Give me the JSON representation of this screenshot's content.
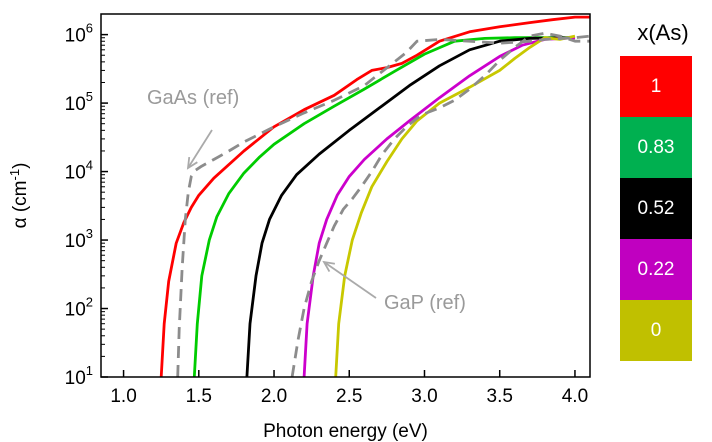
{
  "chart_data": {
    "type": "line",
    "title": "",
    "xlabel": "Photon energy (eV)",
    "ylabel": "α (cm⁻¹)",
    "ylabel_parts": {
      "symbol": "α (cm",
      "sup": "-1",
      "close": ")"
    },
    "xlim": [
      0.85,
      4.1
    ],
    "ylim": [
      10,
      2000000
    ],
    "yscale": "log",
    "x_ticks": [
      "1.0",
      "1.5",
      "2.0",
      "2.5",
      "3.0",
      "3.5",
      "4.0"
    ],
    "x_tick_values": [
      1.0,
      1.5,
      2.0,
      2.5,
      3.0,
      3.5,
      4.0
    ],
    "y_ticks": [
      {
        "value": 10,
        "base": "10",
        "exp": "1"
      },
      {
        "value": 100,
        "base": "10",
        "exp": "2"
      },
      {
        "value": 1000,
        "base": "10",
        "exp": "3"
      },
      {
        "value": 10000,
        "base": "10",
        "exp": "4"
      },
      {
        "value": 100000,
        "base": "10",
        "exp": "5"
      },
      {
        "value": 1000000,
        "base": "10",
        "exp": "6"
      }
    ],
    "grid": false,
    "legend_title": "x(As)",
    "legend_placement": "right",
    "series": [
      {
        "name": "1",
        "color": "#ff0000",
        "style": "solid",
        "x": [
          1.25,
          1.27,
          1.3,
          1.35,
          1.4,
          1.45,
          1.5,
          1.6,
          1.8,
          2.0,
          2.2,
          2.4,
          2.55,
          2.65,
          2.75,
          2.85,
          2.95,
          3.1,
          3.3,
          3.5,
          3.7,
          3.85,
          4.0,
          4.1
        ],
        "y": [
          10,
          60,
          250,
          900,
          1800,
          3000,
          4500,
          8000,
          20000,
          45000,
          80000,
          130000,
          220000,
          300000,
          330000,
          380000,
          500000,
          800000,
          1100000,
          1300000,
          1500000,
          1650000,
          1800000,
          1800000
        ]
      },
      {
        "name": "0.83",
        "color": "#00cc00",
        "style": "solid",
        "x": [
          1.47,
          1.49,
          1.52,
          1.57,
          1.62,
          1.7,
          1.8,
          1.9,
          2.0,
          2.2,
          2.4,
          2.6,
          2.8,
          3.0,
          3.2,
          3.4,
          3.6,
          3.8,
          4.0
        ],
        "y": [
          10,
          60,
          300,
          1000,
          2200,
          4800,
          9500,
          16000,
          25000,
          50000,
          90000,
          160000,
          290000,
          520000,
          800000,
          880000,
          900000,
          900000,
          900000
        ]
      },
      {
        "name": "0.52",
        "color": "#000000",
        "style": "solid",
        "x": [
          1.82,
          1.84,
          1.88,
          1.92,
          1.97,
          2.05,
          2.15,
          2.3,
          2.5,
          2.7,
          2.9,
          3.1,
          3.3,
          3.5,
          3.7,
          4.0
        ],
        "y": [
          10,
          60,
          300,
          900,
          2000,
          4500,
          9000,
          18000,
          40000,
          85000,
          180000,
          350000,
          600000,
          800000,
          880000,
          900000
        ]
      },
      {
        "name": "0.22",
        "color": "#cc00cc",
        "style": "solid",
        "x": [
          2.2,
          2.22,
          2.26,
          2.3,
          2.35,
          2.42,
          2.5,
          2.6,
          2.75,
          2.9,
          3.1,
          3.3,
          3.5,
          3.65,
          3.8,
          4.0
        ],
        "y": [
          10,
          60,
          300,
          900,
          2000,
          4500,
          8500,
          15000,
          30000,
          55000,
          120000,
          250000,
          480000,
          700000,
          850000,
          900000
        ]
      },
      {
        "name": "0",
        "color": "#c8c800",
        "style": "solid",
        "x": [
          2.41,
          2.43,
          2.47,
          2.52,
          2.58,
          2.65,
          2.75,
          2.85,
          2.95,
          3.1,
          3.3,
          3.5,
          3.6,
          3.7,
          3.8,
          3.9,
          4.0
        ],
        "y": [
          10,
          60,
          300,
          1000,
          2500,
          6000,
          14000,
          30000,
          55000,
          100000,
          170000,
          300000,
          450000,
          650000,
          900000,
          850000,
          950000
        ]
      },
      {
        "name": "GaAs (ref)",
        "color": "#8c8c8c",
        "style": "dashed",
        "x": [
          1.36,
          1.37,
          1.39,
          1.41,
          1.43,
          1.45,
          1.48,
          1.52,
          1.6,
          1.7,
          1.8,
          2.0,
          2.2,
          2.4,
          2.6,
          2.7,
          2.8,
          2.88,
          2.95,
          3.1,
          3.3,
          3.5,
          3.7,
          3.8,
          4.0,
          4.1
        ],
        "y": [
          10,
          50,
          400,
          2000,
          5000,
          8500,
          10500,
          12000,
          15000,
          20000,
          27000,
          45000,
          72000,
          110000,
          180000,
          270000,
          400000,
          550000,
          800000,
          850000,
          800000,
          750000,
          800000,
          850000,
          900000,
          950000
        ]
      },
      {
        "name": "GaP (ref)",
        "color": "#8c8c8c",
        "style": "dashed",
        "x": [
          2.12,
          2.16,
          2.2,
          2.25,
          2.3,
          2.35,
          2.4,
          2.46,
          2.52,
          2.58,
          2.65,
          2.72,
          2.8,
          2.88,
          2.95,
          3.0,
          3.1,
          3.2,
          3.3,
          3.4,
          3.5,
          3.6,
          3.7,
          3.8,
          3.9,
          4.0,
          4.1
        ],
        "y": [
          10,
          35,
          100,
          250,
          500,
          900,
          1600,
          2800,
          4000,
          6000,
          10000,
          18000,
          30000,
          45000,
          60000,
          70000,
          85000,
          110000,
          160000,
          250000,
          420000,
          650000,
          950000,
          1050000,
          950000,
          800000,
          800000
        ]
      }
    ],
    "annotations": [
      {
        "text": "GaAs (ref)",
        "target_x": 1.45,
        "target_y": 10000
      },
      {
        "text": "GaP (ref)",
        "target_x": 2.36,
        "target_y": 500
      }
    ],
    "legend_entries": [
      {
        "label": "1",
        "color": "#ff0000"
      },
      {
        "label": "0.83",
        "color": "#00b050"
      },
      {
        "label": "0.52",
        "color": "#000000"
      },
      {
        "label": "0.22",
        "color": "#c000c0"
      },
      {
        "label": "0",
        "color": "#c0c000"
      }
    ]
  }
}
